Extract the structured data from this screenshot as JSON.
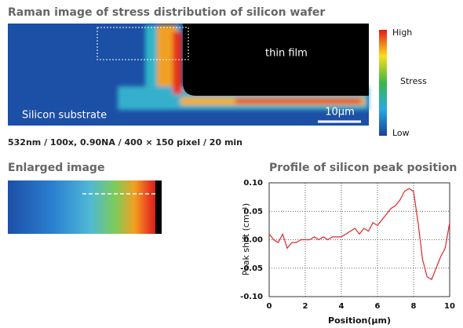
{
  "header": {
    "title": "Raman image of stress distribution of silicon wafer"
  },
  "raman_image": {
    "film_label": "thin film",
    "substrate_label": "Silicon substrate",
    "scale_bar": "10µm"
  },
  "colorbar": {
    "high": "High",
    "middle": "Stress",
    "low": "Low"
  },
  "conditions": "532nm / 100x, 0.90NA / 400 × 150 pixel / 20 min",
  "enlarged": {
    "title": "Enlarged image"
  },
  "chart_data": {
    "type": "line",
    "title": "Profile of silicon peak position",
    "x_label": "Position(µm)",
    "y_label": "Peak shift (cm⁻¹)",
    "x": [
      0,
      0.25,
      0.5,
      0.75,
      1.0,
      1.25,
      1.5,
      1.75,
      2.0,
      2.25,
      2.5,
      2.75,
      3.0,
      3.25,
      3.5,
      3.75,
      4.0,
      4.25,
      4.5,
      4.75,
      5.0,
      5.25,
      5.5,
      5.75,
      6.0,
      6.25,
      6.5,
      6.75,
      7.0,
      7.25,
      7.5,
      7.75,
      8.0,
      8.25,
      8.5,
      8.75,
      9.0,
      9.25,
      9.5,
      9.75,
      10
    ],
    "series": [
      {
        "color": "#e0262b",
        "values": [
          0.01,
          0.0,
          -0.005,
          0.01,
          -0.015,
          -0.005,
          -0.005,
          0.0,
          0.0,
          0.0,
          0.005,
          0.0,
          0.005,
          0.0,
          0.005,
          0.005,
          0.005,
          0.01,
          0.015,
          0.02,
          0.01,
          0.02,
          0.015,
          0.03,
          0.025,
          0.035,
          0.045,
          0.055,
          0.06,
          0.07,
          0.085,
          0.09,
          0.085,
          0.03,
          -0.035,
          -0.065,
          -0.07,
          -0.05,
          -0.03,
          -0.015,
          0.03
        ]
      }
    ],
    "xlim": [
      0,
      10
    ],
    "ylim": [
      -0.1,
      0.1
    ],
    "xticks": [
      0,
      2,
      4,
      6,
      8,
      10
    ],
    "yticks": [
      {
        "value": 0.1,
        "label": "0.10"
      },
      {
        "value": 0.05,
        "label": "0.05"
      },
      {
        "value": 0,
        "label": "0.00"
      },
      {
        "value": -0.05,
        "label": "-0.05"
      },
      {
        "value": -0.1,
        "label": "-0.10"
      }
    ],
    "grid": true
  }
}
